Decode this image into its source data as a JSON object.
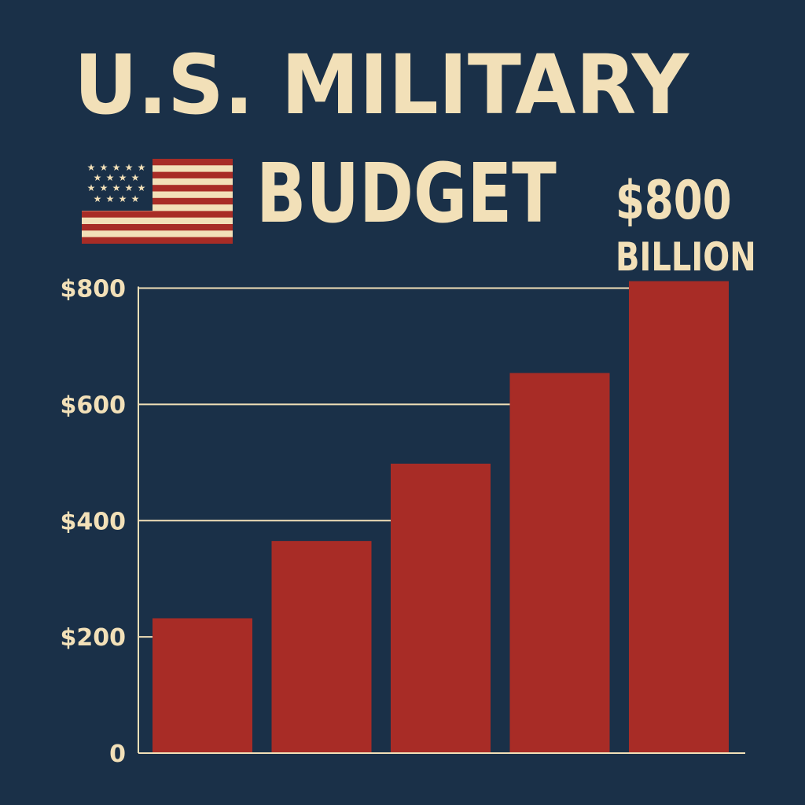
{
  "title": {
    "line1": "U.S. MILITARY",
    "line2": "BUDGET"
  },
  "callout": {
    "amount": "$800",
    "unit": "BILLION"
  },
  "flag_icon": "us-flag-icon",
  "colors": {
    "background": "#1a3048",
    "bar": "#a82c26",
    "text": "#f2e0b8",
    "gridline": "#f2e0b8"
  },
  "chart_data": {
    "type": "bar",
    "title": "U.S. MILITARY BUDGET",
    "xlabel": "",
    "ylabel": "",
    "categories": [
      "",
      "",
      "",
      "",
      ""
    ],
    "values": [
      232,
      365,
      498,
      654,
      812
    ],
    "ylim": [
      0,
      890
    ],
    "yticks": [
      0,
      200,
      400,
      600,
      800
    ],
    "ytick_labels": [
      "0",
      "$200",
      "$400",
      "$600",
      "$800"
    ],
    "grid": "horizontal",
    "legend": "none"
  }
}
